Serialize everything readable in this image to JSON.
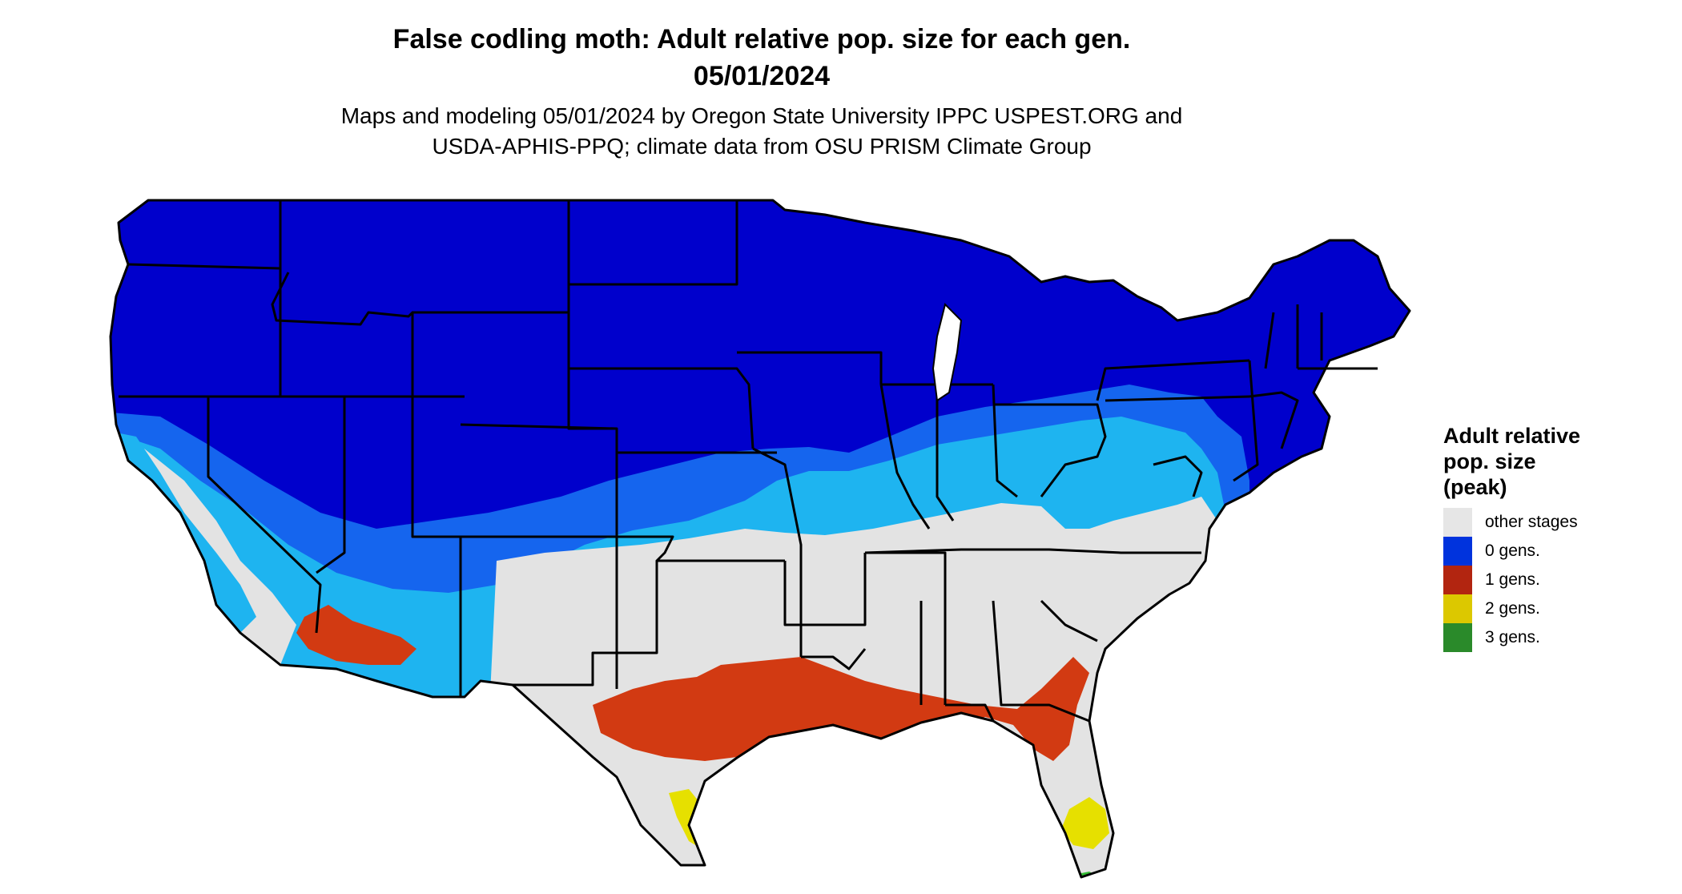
{
  "header": {
    "title_line1": "False codling moth: Adult relative pop. size for each gen.",
    "title_line2": "05/01/2024",
    "subtitle_line1": "Maps and modeling 05/01/2024 by Oregon State University IPPC USPEST.ORG and",
    "subtitle_line2": "USDA-APHIS-PPQ; climate data from OSU PRISM Climate Group"
  },
  "legend": {
    "title_line1": "Adult relative",
    "title_line2": "pop. size",
    "title_line3": "(peak)",
    "items": [
      {
        "label": "other stages",
        "color": "#e6e6e6"
      },
      {
        "label": "0 gens.",
        "color": "#0033dd"
      },
      {
        "label": "1 gens.",
        "color": "#b22510"
      },
      {
        "label": "2 gens.",
        "color": "#dcc800"
      },
      {
        "label": "3 gens.",
        "color": "#2a8a2a"
      }
    ]
  },
  "map_colors": {
    "other_stages": "#e3e3e3",
    "zero_gens_north": "#0000cc",
    "zero_gens_transition": "#1565ee",
    "zero_gens_south": "#1eb4f0",
    "one_gen": "#d23a12",
    "two_gens": "#e6e000",
    "three_gens": "#33bb33",
    "state_borders": "#000000"
  }
}
